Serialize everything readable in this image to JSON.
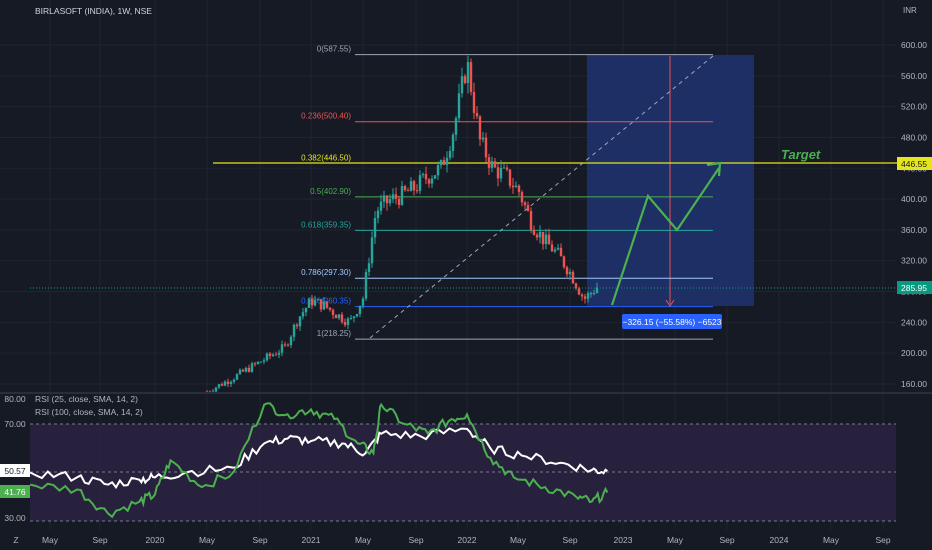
{
  "header": {
    "symbol_title": "BIRLASOFT (INDIA), 1W, NSE",
    "currency": "INR",
    "target_label": "Target",
    "measure_label": "−326.15 (−55.58%) −6523"
  },
  "colors": {
    "background": "#161a25",
    "up_candle": "#26a69a",
    "down_candle": "#ef5350",
    "rsi_fast": "#4caf50",
    "rsi_slow": "#ffffff",
    "rsi_band": "#2a2240",
    "target_line": "#e5e51d",
    "measure_box": "#1e3470",
    "measure_badge": "#2962ff",
    "price_badge": "#089981"
  },
  "chart_data": [
    {
      "type": "candlestick",
      "title": "BIRLASOFT (INDIA), 1W, NSE",
      "y_axis_unit": "INR",
      "ylim": [
        145,
        620
      ],
      "y_ticks": [
        160,
        200,
        240,
        280,
        320,
        360,
        400,
        440,
        480,
        520,
        560,
        600
      ],
      "y_tick_labels": [
        "160.00",
        "200.00",
        "240.00",
        "280.00",
        "320.00",
        "360.00",
        "400.00",
        "440.00",
        "480.00",
        "520.00",
        "560.00",
        "600.00"
      ],
      "x_tick_labels": [
        "Z",
        "May",
        "Sep",
        "2020",
        "May",
        "Sep",
        "2021",
        "May",
        "Sep",
        "2022",
        "May",
        "Sep",
        "2023",
        "May",
        "Sep",
        "2024",
        "May",
        "Sep"
      ],
      "last_price": "285.95",
      "target_price": "446.55",
      "close_series_approx": [
        [
          "2020-05",
          150
        ],
        [
          "2020-07",
          168
        ],
        [
          "2020-09",
          188
        ],
        [
          "2020-11",
          208
        ],
        [
          "2020-12",
          245
        ],
        [
          "2021-01",
          268
        ],
        [
          "2021-02",
          262
        ],
        [
          "2021-03",
          250
        ],
        [
          "2021-04",
          240
        ],
        [
          "2021-05",
          272
        ],
        [
          "2021-06",
          385
        ],
        [
          "2021-07",
          398
        ],
        [
          "2021-08",
          405
        ],
        [
          "2021-09",
          415
        ],
        [
          "2021-10",
          430
        ],
        [
          "2021-11",
          440
        ],
        [
          "2021-12",
          492
        ],
        [
          "2022-01",
          578
        ],
        [
          "2022-02",
          475
        ],
        [
          "2022-03",
          440
        ],
        [
          "2022-04",
          430
        ],
        [
          "2022-05",
          410
        ],
        [
          "2022-06",
          368
        ],
        [
          "2022-07",
          345
        ],
        [
          "2022-08",
          328
        ],
        [
          "2022-09",
          303
        ],
        [
          "2022-10",
          270
        ],
        [
          "2022-11",
          285.95
        ]
      ],
      "fibonacci_levels": [
        {
          "label": "0(587.55)",
          "value": 587.55
        },
        {
          "label": "0.236(500.40)",
          "value": 500.4
        },
        {
          "label": "0.382(446.50)",
          "value": 446.5
        },
        {
          "label": "0.5(402.90)",
          "value": 402.9
        },
        {
          "label": "0.618(359.35)",
          "value": 359.35
        },
        {
          "label": "0.786(297.30)",
          "value": 297.3
        },
        {
          "label": "0.886(260.35)",
          "value": 260.35
        },
        {
          "label": "1(218.25)",
          "value": 218.25
        }
      ],
      "projection_path": [
        [
          "2022-11",
          265
        ],
        [
          "2023-04",
          405
        ],
        [
          "2023-06",
          360
        ],
        [
          "2023-09",
          445
        ]
      ]
    },
    {
      "type": "line",
      "panel": "RSI",
      "ylim": [
        25,
        85
      ],
      "y_ticks": [
        30,
        70,
        80
      ],
      "y_tick_labels": [
        "30.00",
        "70.00",
        "80.00"
      ],
      "band": [
        30,
        70
      ],
      "midline": 50,
      "series": [
        {
          "name": "RSI (25, close, SMA, 14, 2)",
          "current_label": "41.76",
          "values_approx": [
            [
              2019.2,
              45
            ],
            [
              2019.5,
              43
            ],
            [
              2019.7,
              33
            ],
            [
              2019.9,
              38
            ],
            [
              2020.0,
              41
            ],
            [
              2020.1,
              55
            ],
            [
              2020.3,
              44
            ],
            [
              2020.5,
              50
            ],
            [
              2020.7,
              78
            ],
            [
              2020.85,
              74
            ],
            [
              2021.0,
              76
            ],
            [
              2021.15,
              72
            ],
            [
              2021.3,
              62
            ],
            [
              2021.4,
              58
            ],
            [
              2021.45,
              78
            ],
            [
              2021.6,
              70
            ],
            [
              2021.75,
              66
            ],
            [
              2021.9,
              72
            ],
            [
              2022.0,
              74
            ],
            [
              2022.15,
              56
            ],
            [
              2022.3,
              48
            ],
            [
              2022.5,
              44
            ],
            [
              2022.7,
              40
            ],
            [
              2022.8,
              38
            ],
            [
              2022.9,
              41.76
            ]
          ]
        },
        {
          "name": "RSI (100, close, SMA, 14, 2)",
          "current_label": "50.57",
          "values_approx": [
            [
              2019.2,
              50
            ],
            [
              2019.5,
              48
            ],
            [
              2019.7,
              45
            ],
            [
              2019.9,
              47
            ],
            [
              2020.0,
              48
            ],
            [
              2020.2,
              50
            ],
            [
              2020.5,
              52
            ],
            [
              2020.7,
              62
            ],
            [
              2020.85,
              64
            ],
            [
              2021.0,
              63
            ],
            [
              2021.2,
              62
            ],
            [
              2021.35,
              58
            ],
            [
              2021.45,
              66
            ],
            [
              2021.7,
              65
            ],
            [
              2022.0,
              68
            ],
            [
              2022.15,
              60
            ],
            [
              2022.35,
              57
            ],
            [
              2022.6,
              54
            ],
            [
              2022.8,
              51
            ],
            [
              2022.9,
              50.57
            ]
          ]
        }
      ]
    }
  ]
}
